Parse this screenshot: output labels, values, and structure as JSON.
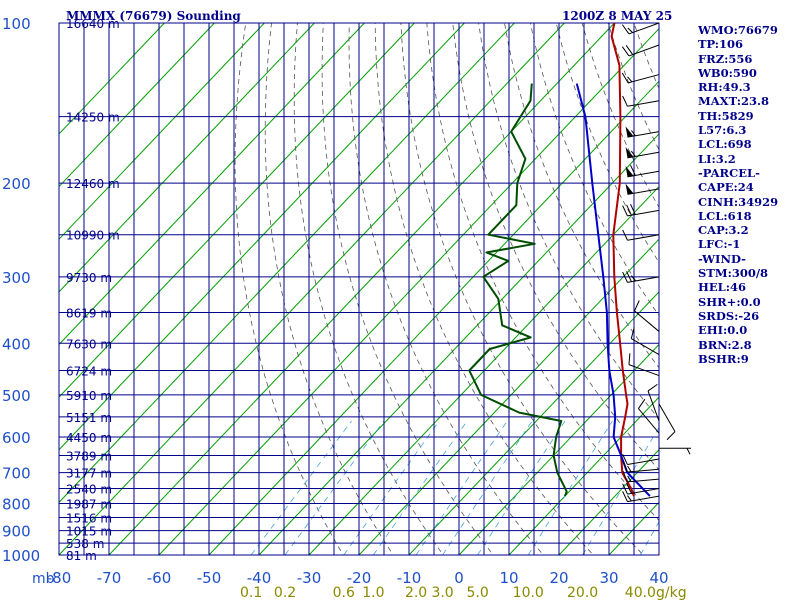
{
  "header": {
    "title": "MMMX (76679) Sounding",
    "time": "1200Z  8 MAY 25"
  },
  "stats": [
    "WMO:76679",
    "TP:106",
    "FRZ:556",
    "WB0:590",
    "RH:49.3",
    "MAXT:23.8",
    "TH:5829",
    "L57:6.3",
    "LCL:698",
    "LI:3.2",
    "-PARCEL-",
    "CAPE:24",
    "CINH:34929",
    "LCL:618",
    "CAP:3.2",
    "LFC:-1",
    "-WIND-",
    "STM:300/8",
    "HEL:46",
    "SHR+:0.0",
    "SRDS:-26",
    "EHI:0.0",
    "BRN:2.8",
    "BSHR:9"
  ],
  "colors": {
    "grid": "#00008b",
    "isotherm": "#00a000",
    "dry_adiabat": "#555555",
    "mixing_ratio": "#4aa3e0",
    "temperature": "#b00000",
    "dewpoint": "#004d00",
    "parcel": "#0000c8",
    "axis_text": "#1e50c8",
    "mixing_ratio_text": "#8a8a00"
  },
  "chart_data": {
    "type": "line",
    "subtype": "skew-T log-P sounding",
    "x_axis_unit_label": "mb",
    "xlim": [
      -80,
      0
    ],
    "ylim": [
      1000,
      100
    ],
    "y_scale": "log",
    "temperature_ticks": [
      "-80",
      "-70",
      "-60",
      "-50",
      "-40",
      "-30",
      "-20",
      "-10",
      "0",
      "10",
      "20",
      "30",
      "40"
    ],
    "temperature_tick_values": [
      -80,
      -70,
      -60,
      -50,
      -40,
      -30,
      -20,
      -10,
      0,
      10,
      20,
      30,
      40
    ],
    "pressure_ticks": [
      "100",
      "200",
      "300",
      "400",
      "500",
      "600",
      "700",
      "800",
      "900",
      "1000"
    ],
    "pressure_tick_values": [
      100,
      200,
      300,
      400,
      500,
      600,
      700,
      800,
      900,
      1000
    ],
    "height_labels": [
      {
        "p": 100,
        "label": "16640 m"
      },
      {
        "p": 150,
        "label": "14250 m"
      },
      {
        "p": 200,
        "label": "12460 m"
      },
      {
        "p": 250,
        "label": "10990 m"
      },
      {
        "p": 300,
        "label": "9730 m"
      },
      {
        "p": 350,
        "label": "8619 m"
      },
      {
        "p": 400,
        "label": "7630 m"
      },
      {
        "p": 450,
        "label": "6724 m"
      },
      {
        "p": 500,
        "label": "5910 m"
      },
      {
        "p": 550,
        "label": "5151 m"
      },
      {
        "p": 600,
        "label": "4450 m"
      },
      {
        "p": 650,
        "label": "3789 m"
      },
      {
        "p": 700,
        "label": "3177 m"
      },
      {
        "p": 750,
        "label": "2540 m"
      },
      {
        "p": 800,
        "label": "1987 m"
      },
      {
        "p": 850,
        "label": "1516 m"
      },
      {
        "p": 900,
        "label": "1015 m"
      },
      {
        "p": 950,
        "label": "538 m"
      },
      {
        "p": 1000,
        "label": "81 m"
      }
    ],
    "mixing_ratio_labels": [
      "0.1",
      "0.2",
      "0.6",
      "1.0",
      "2.0",
      "3.0",
      "5.0",
      "10.0",
      "20.0",
      "40.0"
    ],
    "mixing_ratio_values": [
      0.1,
      0.2,
      0.6,
      1.0,
      2.0,
      3.0,
      5.0,
      10.0,
      20.0,
      40.0
    ],
    "mixing_ratio_unit": "g/kg",
    "series": [
      {
        "key": "temperature",
        "points": [
          [
            775,
            23.8
          ],
          [
            750,
            21.8
          ],
          [
            700,
            17
          ],
          [
            650,
            13.5
          ],
          [
            600,
            10
          ],
          [
            550,
            7
          ],
          [
            520,
            5
          ],
          [
            500,
            3
          ],
          [
            450,
            -2.3
          ],
          [
            400,
            -8
          ],
          [
            350,
            -14.5
          ],
          [
            300,
            -21.8
          ],
          [
            250,
            -30
          ],
          [
            200,
            -38.5
          ],
          [
            150,
            -51
          ],
          [
            120,
            -61
          ],
          [
            106,
            -68
          ],
          [
            100,
            -70
          ]
        ]
      },
      {
        "key": "dewpoint",
        "points": [
          [
            775,
            10
          ],
          [
            760,
            9.5
          ],
          [
            700,
            4
          ],
          [
            650,
            0
          ],
          [
            600,
            -3
          ],
          [
            560,
            -5
          ],
          [
            540,
            -15
          ],
          [
            500,
            -26
          ],
          [
            450,
            -33
          ],
          [
            410,
            -33
          ],
          [
            390,
            -27
          ],
          [
            370,
            -35
          ],
          [
            330,
            -40.8
          ],
          [
            300,
            -48
          ],
          [
            280,
            -46
          ],
          [
            270,
            -52
          ],
          [
            260,
            -44
          ],
          [
            250,
            -55
          ],
          [
            240,
            -55
          ],
          [
            220,
            -55
          ],
          [
            200,
            -59
          ],
          [
            180,
            -62
          ],
          [
            160,
            -70
          ],
          [
            140,
            -72
          ],
          [
            130,
            -75
          ]
        ]
      },
      {
        "key": "parcel",
        "points": [
          [
            775,
            27
          ],
          [
            700,
            18
          ],
          [
            650,
            13.5
          ],
          [
            600,
            8.5
          ],
          [
            550,
            5
          ],
          [
            500,
            0.5
          ],
          [
            450,
            -5
          ],
          [
            400,
            -10.5
          ],
          [
            350,
            -16.5
          ],
          [
            300,
            -24
          ],
          [
            250,
            -33
          ],
          [
            200,
            -44
          ],
          [
            150,
            -58
          ],
          [
            130,
            -66
          ]
        ]
      }
    ],
    "wind_barbs": [
      {
        "p": 100,
        "dir": 250,
        "speed": 15
      },
      {
        "p": 110,
        "dir": 250,
        "speed": 20
      },
      {
        "p": 125,
        "dir": 255,
        "speed": 15
      },
      {
        "p": 140,
        "dir": 260,
        "speed": 10
      },
      {
        "p": 160,
        "dir": 260,
        "speed": 55
      },
      {
        "p": 175,
        "dir": 260,
        "speed": 55
      },
      {
        "p": 190,
        "dir": 260,
        "speed": 60
      },
      {
        "p": 205,
        "dir": 260,
        "speed": 50
      },
      {
        "p": 225,
        "dir": 260,
        "speed": 30
      },
      {
        "p": 250,
        "dir": 260,
        "speed": 10
      },
      {
        "p": 300,
        "dir": 260,
        "speed": 25
      },
      {
        "p": 380,
        "dir": 310,
        "speed": 10
      },
      {
        "p": 420,
        "dir": 300,
        "speed": 10
      },
      {
        "p": 460,
        "dir": 290,
        "speed": 10
      },
      {
        "p": 520,
        "dir": 150,
        "speed": 10
      },
      {
        "p": 560,
        "dir": 340,
        "speed": 10
      },
      {
        "p": 590,
        "dir": 320,
        "speed": 10
      },
      {
        "p": 630,
        "dir": 90,
        "speed": 5
      },
      {
        "p": 660,
        "dir": 260,
        "speed": 10
      },
      {
        "p": 690,
        "dir": 265,
        "speed": 15
      },
      {
        "p": 720,
        "dir": 265,
        "speed": 15
      },
      {
        "p": 750,
        "dir": 260,
        "speed": 20
      },
      {
        "p": 775,
        "dir": 260,
        "speed": 15
      }
    ]
  }
}
